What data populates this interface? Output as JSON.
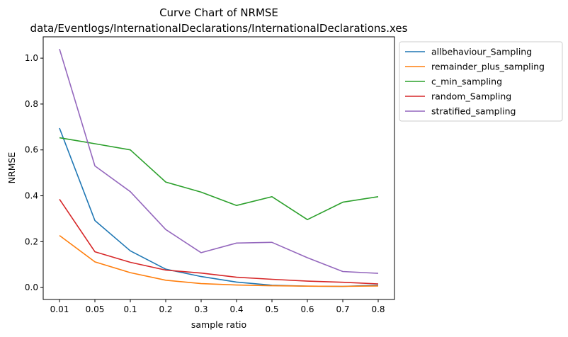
{
  "chart_data": {
    "type": "line",
    "title": "Curve Chart of NRMSE",
    "subtitle": "data/Eventlogs/InternationalDeclarations/InternationalDeclarations.xes",
    "xlabel": "sample ratio",
    "ylabel": "NRMSE",
    "categories": [
      "0.01",
      "0.05",
      "0.1",
      "0.2",
      "0.3",
      "0.4",
      "0.5",
      "0.6",
      "0.7",
      "0.8"
    ],
    "ylim": [
      -0.052,
      1.093
    ],
    "yticks": [
      "0.0",
      "0.2",
      "0.4",
      "0.6",
      "0.8",
      "1.0"
    ],
    "grid": false,
    "legend_position": "outside-top-right",
    "series": [
      {
        "name": "allbehaviour_Sampling",
        "color": "#1f77b4",
        "values": [
          0.695,
          0.292,
          0.16,
          0.08,
          0.048,
          0.024,
          0.01,
          0.006,
          0.005,
          0.01
        ]
      },
      {
        "name": "remainder_plus_sampling",
        "color": "#ff7f0e",
        "values": [
          0.227,
          0.112,
          0.065,
          0.032,
          0.017,
          0.011,
          0.008,
          0.006,
          0.005,
          0.007
        ]
      },
      {
        "name": "c_min_sampling",
        "color": "#2ca02c",
        "values": [
          0.653,
          0.627,
          0.6,
          0.46,
          0.416,
          0.358,
          0.396,
          0.296,
          0.372,
          0.396
        ]
      },
      {
        "name": "random_Sampling",
        "color": "#d62728",
        "values": [
          0.385,
          0.156,
          0.11,
          0.076,
          0.063,
          0.045,
          0.036,
          0.028,
          0.023,
          0.016
        ]
      },
      {
        "name": "stratified_sampling",
        "color": "#9467bd",
        "values": [
          1.04,
          0.53,
          0.418,
          0.253,
          0.152,
          0.194,
          0.197,
          0.13,
          0.07,
          0.062
        ]
      }
    ]
  }
}
